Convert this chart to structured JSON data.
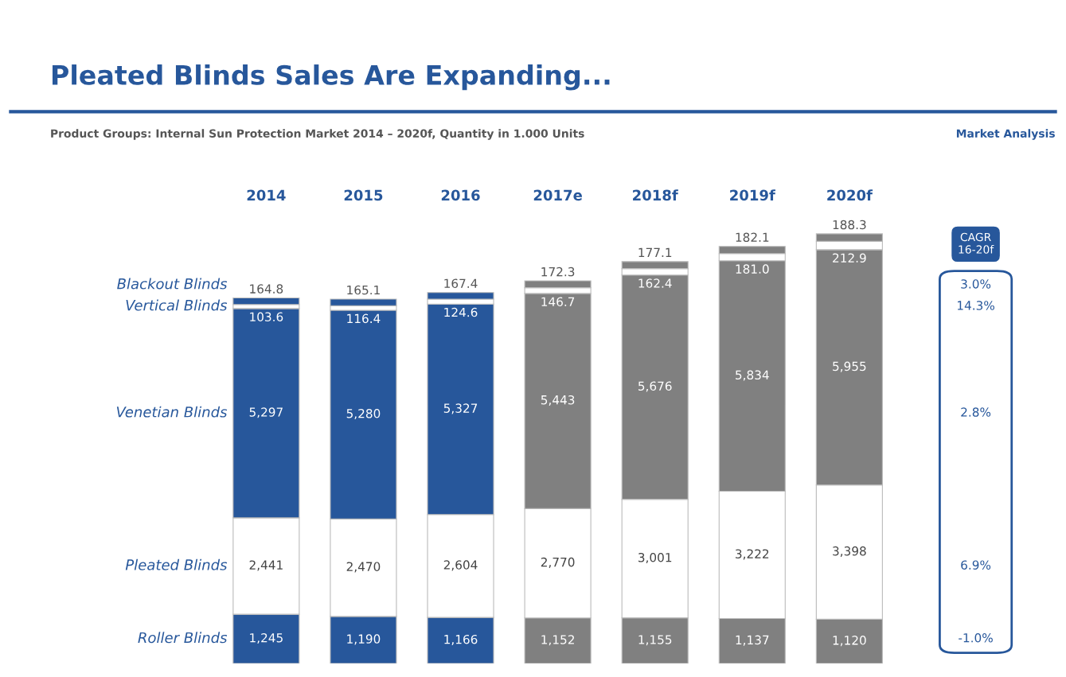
{
  "chart_data": {
    "type": "bar",
    "stacked": true,
    "title": "Pleated Blinds Sales Are Expanding...",
    "subtitle": "Product Groups: Internal Sun Protection Market 2014 – 2020f, Quantity in 1.000 Units",
    "categories": [
      "2014",
      "2015",
      "2016",
      "2017e",
      "2018f",
      "2019f",
      "2020f"
    ],
    "series": [
      {
        "name": "Roller Blinds",
        "colors": [
          "#27579b",
          "#27579b",
          "#27579b",
          "#808080",
          "#808080",
          "#808080",
          "#808080"
        ],
        "values": [
          1245,
          1190,
          1166,
          1152,
          1155,
          1137,
          1120
        ],
        "value_labels": [
          "1,245",
          "1,190",
          "1,166",
          "1,152",
          "1,155",
          "1,137",
          "1,120"
        ]
      },
      {
        "name": "Pleated Blinds",
        "colors": [
          "#ffffff",
          "#ffffff",
          "#ffffff",
          "#ffffff",
          "#ffffff",
          "#ffffff",
          "#ffffff"
        ],
        "values": [
          2441,
          2470,
          2604,
          2770,
          3001,
          3222,
          3398
        ],
        "value_labels": [
          "2,441",
          "2,470",
          "2,604",
          "2,770",
          "3,001",
          "3,222",
          "3,398"
        ]
      },
      {
        "name": "Venetian Blinds",
        "colors": [
          "#27579b",
          "#27579b",
          "#27579b",
          "#808080",
          "#808080",
          "#808080",
          "#808080"
        ],
        "values": [
          5297,
          5280,
          5327,
          5443,
          5676,
          5834,
          5955
        ],
        "value_labels": [
          "5,297",
          "5,280",
          "5,327",
          "5,443",
          "5,676",
          "5,834",
          "5,955"
        ]
      },
      {
        "name": "Vertical Blinds",
        "colors": [
          "#ffffff",
          "#ffffff",
          "#ffffff",
          "#ffffff",
          "#ffffff",
          "#ffffff",
          "#ffffff"
        ],
        "values": [
          103.6,
          116.4,
          124.6,
          146.7,
          162.4,
          181.0,
          212.9
        ],
        "value_labels": [
          "103.6",
          "116.4",
          "124.6",
          "146.7",
          "162.4",
          "181.0",
          "212.9"
        ]
      },
      {
        "name": "Blackout Blinds",
        "colors": [
          "#27579b",
          "#27579b",
          "#27579b",
          "#808080",
          "#808080",
          "#808080",
          "#808080"
        ],
        "values": [
          164.8,
          165.1,
          167.4,
          172.3,
          177.1,
          182.1,
          188.3
        ],
        "value_labels": [
          "164.8",
          "165.1",
          "167.4",
          "172.3",
          "177.1",
          "182.1",
          "188.3"
        ]
      }
    ],
    "annotations": [
      "Market Analysis",
      "CAGR\n16-20f",
      "-1.0%",
      "6.9%",
      "2.8%",
      "14.3%",
      "3.0%"
    ]
  }
}
